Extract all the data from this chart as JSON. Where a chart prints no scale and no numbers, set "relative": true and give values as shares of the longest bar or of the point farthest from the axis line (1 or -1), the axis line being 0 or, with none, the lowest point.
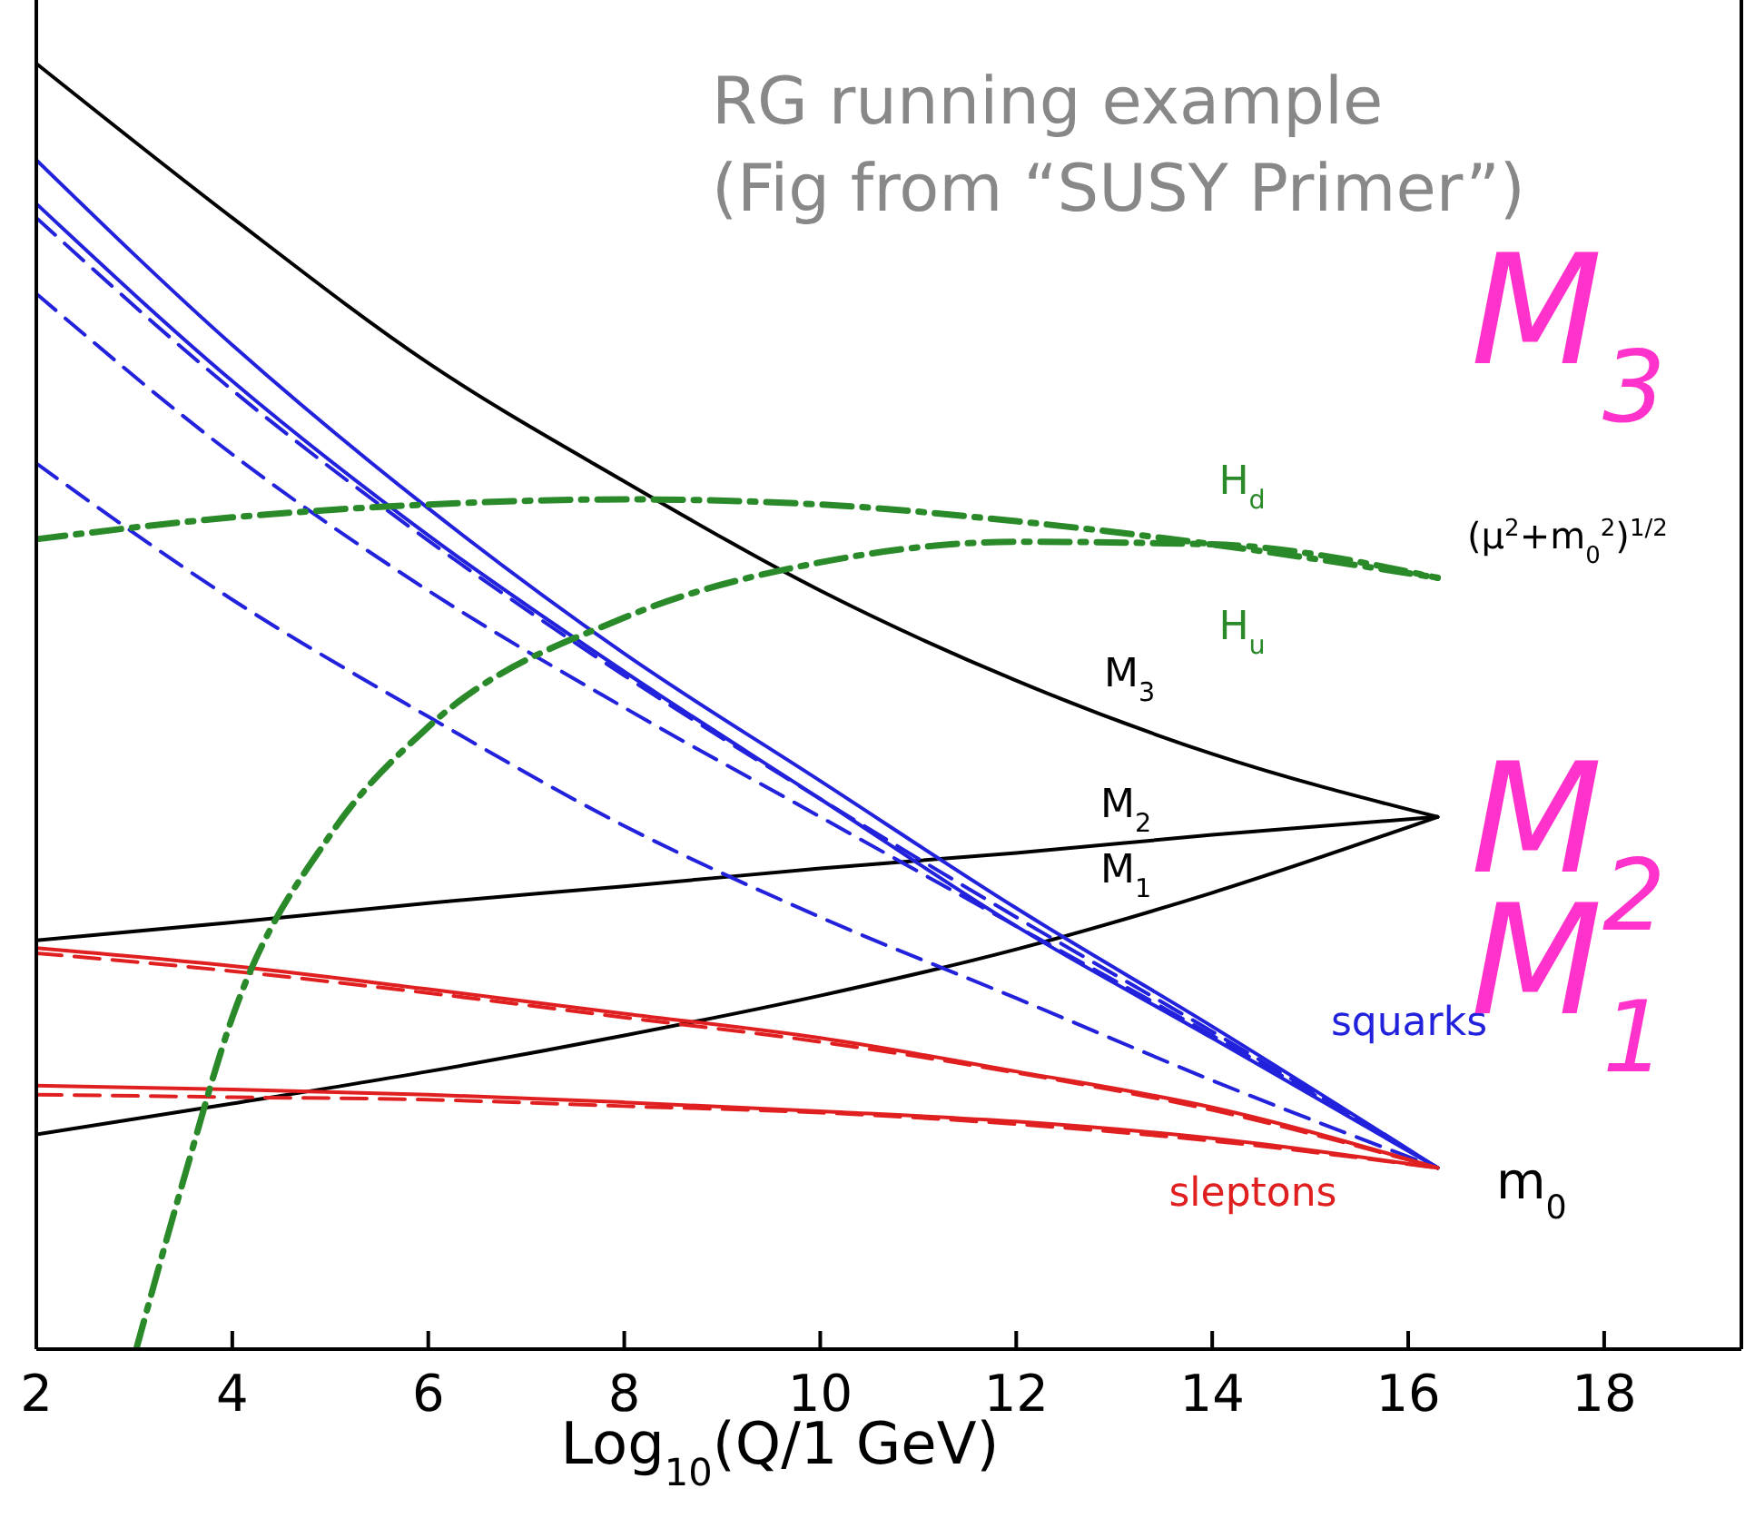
{
  "chart_data": {
    "type": "line",
    "relative": true,
    "xlabel": "Log$_{10}$(Q/1 GeV)",
    "xlim": [
      2,
      19.4
    ],
    "xticks": [
      2,
      4,
      6,
      8,
      10,
      12,
      14,
      16,
      18
    ],
    "grid": false,
    "legend": false,
    "x": [
      2,
      4,
      6,
      8,
      10,
      12,
      14,
      16.3
    ],
    "series": [
      {
        "name": "M$_{3}$",
        "color": "#000000",
        "line_style": "solid",
        "values": [
          1.0,
          0.88,
          0.767,
          0.675,
          0.59,
          0.52,
          0.463,
          0.414
        ]
      },
      {
        "name": "M$_{2}$",
        "color": "#000000",
        "line_style": "solid",
        "values": [
          0.318,
          0.332,
          0.347,
          0.36,
          0.374,
          0.386,
          0.4,
          0.414
        ]
      },
      {
        "name": "M$_{1}$",
        "color": "#000000",
        "line_style": "solid",
        "values": [
          0.167,
          0.191,
          0.216,
          0.244,
          0.275,
          0.311,
          0.355,
          0.414
        ]
      },
      {
        "name": "squarks",
        "color": "#2222dd",
        "line_style": "solid",
        "values": [
          0.925,
          0.781,
          0.654,
          0.541,
          0.442,
          0.343,
          0.251,
          0.141
        ]
      },
      {
        "color": "#2222dd",
        "line_style": "solid",
        "values": [
          0.891,
          0.753,
          0.633,
          0.527,
          0.428,
          0.329,
          0.242,
          0.141
        ]
      },
      {
        "color": "#2222dd",
        "line_style": "dashed",
        "values": [
          0.88,
          0.746,
          0.629,
          0.524,
          0.428,
          0.336,
          0.247,
          0.141
        ]
      },
      {
        "color": "#2222dd",
        "line_style": "dashed",
        "values": [
          0.821,
          0.696,
          0.59,
          0.499,
          0.414,
          0.329,
          0.244,
          0.141
        ]
      },
      {
        "color": "#2222dd",
        "line_style": "dashed",
        "values": [
          0.689,
          0.583,
          0.492,
          0.407,
          0.336,
          0.273,
          0.209,
          0.141
        ]
      },
      {
        "color": "#e02020",
        "line_style": "solid",
        "values": [
          0.312,
          0.298,
          0.28,
          0.261,
          0.242,
          0.216,
          0.188,
          0.141
        ]
      },
      {
        "color": "#e02020",
        "line_style": "dashed",
        "values": [
          0.308,
          0.294,
          0.277,
          0.258,
          0.239,
          0.215,
          0.186,
          0.141
        ]
      },
      {
        "name": "sleptons",
        "color": "#e02020",
        "line_style": "solid",
        "values": [
          0.205,
          0.202,
          0.198,
          0.192,
          0.185,
          0.177,
          0.164,
          0.141
        ]
      },
      {
        "color": "#e02020",
        "line_style": "dashed",
        "values": [
          0.198,
          0.196,
          0.194,
          0.189,
          0.184,
          0.175,
          0.162,
          0.141
        ]
      },
      {
        "name": "H$_{d}$",
        "color": "#2a8a2a",
        "line_style": "dashdot",
        "values": [
          0.63,
          0.647,
          0.657,
          0.661,
          0.657,
          0.644,
          0.626,
          0.6
        ]
      },
      {
        "name": "H$_{u}$",
        "color": "#2a8a2a",
        "line_style": "dashdot",
        "x": [
          3.02,
          3.5,
          4,
          5,
          6,
          8,
          10,
          12,
          14,
          16.3
        ],
        "values": [
          0,
          0.131,
          0.258,
          0.4,
          0.484,
          0.569,
          0.612,
          0.628,
          0.626,
          0.6
        ]
      }
    ],
    "annotations": [
      "RG running example",
      "(Fig from “SUSY Primer”)",
      "(μ$^{2}$+m$_{0}$$^{2}$)$^{1/2}$",
      "m$_{0}$",
      "M$_{3}$",
      "M$_{2}$",
      "M$_{1}$"
    ]
  }
}
